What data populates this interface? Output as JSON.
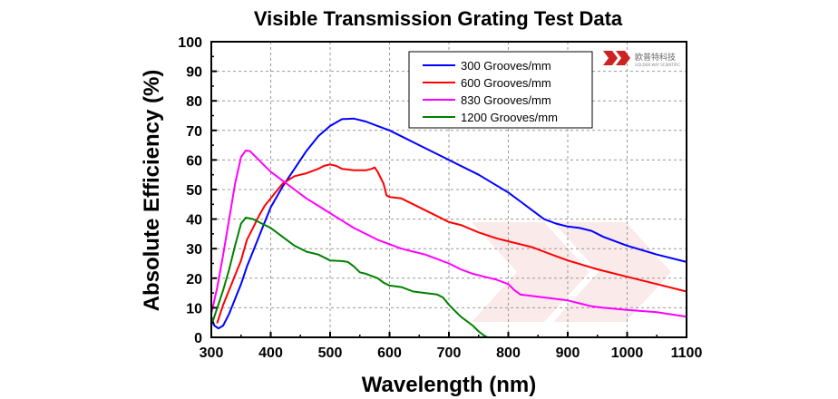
{
  "chart_data": {
    "type": "line",
    "title": "Visible Transmission Grating Test Data",
    "xlabel": "Wavelength (nm)",
    "ylabel": "Absolute Efficiency (%)",
    "xlim": [
      300,
      1100
    ],
    "ylim": [
      0,
      100
    ],
    "x_ticks": [
      300,
      400,
      500,
      600,
      700,
      800,
      900,
      1000,
      1100
    ],
    "y_ticks": [
      0,
      10,
      20,
      30,
      40,
      50,
      60,
      70,
      80,
      90,
      100
    ],
    "grid": true,
    "legend_position": "top-right",
    "series": [
      {
        "name": "300 Grooves/mm",
        "color": "#0000ff",
        "points": [
          [
            300,
            7
          ],
          [
            305,
            4
          ],
          [
            312,
            3
          ],
          [
            320,
            4
          ],
          [
            330,
            8
          ],
          [
            340,
            13
          ],
          [
            350,
            18
          ],
          [
            360,
            24
          ],
          [
            370,
            29
          ],
          [
            380,
            34
          ],
          [
            390,
            39
          ],
          [
            400,
            44
          ],
          [
            420,
            51
          ],
          [
            440,
            57
          ],
          [
            460,
            63
          ],
          [
            480,
            68
          ],
          [
            500,
            71.5
          ],
          [
            520,
            73.8
          ],
          [
            540,
            74
          ],
          [
            560,
            73
          ],
          [
            580,
            71.5
          ],
          [
            600,
            70
          ],
          [
            620,
            68
          ],
          [
            650,
            65
          ],
          [
            700,
            60
          ],
          [
            750,
            55
          ],
          [
            800,
            49
          ],
          [
            820,
            46
          ],
          [
            840,
            43
          ],
          [
            860,
            40
          ],
          [
            880,
            38.5
          ],
          [
            900,
            37.5
          ],
          [
            920,
            37
          ],
          [
            940,
            36
          ],
          [
            960,
            34
          ],
          [
            1000,
            31
          ],
          [
            1050,
            28
          ],
          [
            1100,
            25.5
          ]
        ]
      },
      {
        "name": "600 Grooves/mm",
        "color": "#ff0000",
        "points": [
          [
            310,
            5
          ],
          [
            320,
            11
          ],
          [
            330,
            16
          ],
          [
            340,
            21
          ],
          [
            350,
            26
          ],
          [
            360,
            33
          ],
          [
            370,
            37
          ],
          [
            380,
            41
          ],
          [
            390,
            44.5
          ],
          [
            400,
            47
          ],
          [
            420,
            52
          ],
          [
            440,
            54.5
          ],
          [
            460,
            55.5
          ],
          [
            480,
            57
          ],
          [
            490,
            58
          ],
          [
            500,
            58.5
          ],
          [
            510,
            58
          ],
          [
            520,
            57
          ],
          [
            540,
            56.5
          ],
          [
            560,
            56.5
          ],
          [
            570,
            57
          ],
          [
            575,
            57.5
          ],
          [
            580,
            56
          ],
          [
            590,
            52
          ],
          [
            595,
            48
          ],
          [
            600,
            47.5
          ],
          [
            620,
            47
          ],
          [
            640,
            45
          ],
          [
            660,
            43
          ],
          [
            680,
            41
          ],
          [
            700,
            39
          ],
          [
            720,
            38
          ],
          [
            750,
            35.5
          ],
          [
            780,
            33.5
          ],
          [
            800,
            32.5
          ],
          [
            820,
            31.5
          ],
          [
            840,
            30.5
          ],
          [
            860,
            29
          ],
          [
            880,
            27.5
          ],
          [
            900,
            26
          ],
          [
            950,
            23
          ],
          [
            1000,
            20.5
          ],
          [
            1050,
            18
          ],
          [
            1100,
            15.5
          ]
        ]
      },
      {
        "name": "830 Grooves/mm",
        "color": "#ff00ff",
        "points": [
          [
            300,
            8
          ],
          [
            310,
            17
          ],
          [
            320,
            28
          ],
          [
            330,
            40
          ],
          [
            340,
            52
          ],
          [
            350,
            61
          ],
          [
            358,
            63.2
          ],
          [
            365,
            63
          ],
          [
            375,
            61
          ],
          [
            390,
            58
          ],
          [
            400,
            56
          ],
          [
            420,
            53
          ],
          [
            440,
            50
          ],
          [
            460,
            47
          ],
          [
            480,
            44.5
          ],
          [
            500,
            42
          ],
          [
            520,
            39.5
          ],
          [
            540,
            37
          ],
          [
            560,
            35
          ],
          [
            580,
            33
          ],
          [
            600,
            31.5
          ],
          [
            620,
            30
          ],
          [
            640,
            29
          ],
          [
            660,
            28
          ],
          [
            680,
            26.5
          ],
          [
            700,
            25
          ],
          [
            720,
            23
          ],
          [
            740,
            21.5
          ],
          [
            760,
            20.5
          ],
          [
            780,
            19.5
          ],
          [
            800,
            18
          ],
          [
            810,
            16
          ],
          [
            820,
            14.5
          ],
          [
            840,
            14
          ],
          [
            860,
            13.5
          ],
          [
            880,
            13
          ],
          [
            900,
            12.5
          ],
          [
            920,
            11.5
          ],
          [
            940,
            10.5
          ],
          [
            960,
            10
          ],
          [
            1000,
            9.3
          ],
          [
            1050,
            8.5
          ],
          [
            1100,
            7
          ]
        ]
      },
      {
        "name": "1200 Grooves/mm",
        "color": "#008000",
        "points": [
          [
            300,
            4
          ],
          [
            310,
            10
          ],
          [
            320,
            16
          ],
          [
            330,
            23
          ],
          [
            340,
            31
          ],
          [
            350,
            38.5
          ],
          [
            358,
            40.5
          ],
          [
            370,
            40
          ],
          [
            380,
            39
          ],
          [
            400,
            37
          ],
          [
            420,
            34
          ],
          [
            440,
            31
          ],
          [
            460,
            29
          ],
          [
            480,
            28
          ],
          [
            500,
            26
          ],
          [
            520,
            25.8
          ],
          [
            530,
            25.5
          ],
          [
            540,
            24
          ],
          [
            550,
            22
          ],
          [
            560,
            21.5
          ],
          [
            580,
            20
          ],
          [
            590,
            18.5
          ],
          [
            600,
            17.5
          ],
          [
            620,
            17
          ],
          [
            640,
            15.5
          ],
          [
            660,
            15
          ],
          [
            680,
            14.5
          ],
          [
            690,
            13.5
          ],
          [
            700,
            11
          ],
          [
            710,
            9
          ],
          [
            720,
            7
          ],
          [
            740,
            4
          ],
          [
            750,
            2
          ],
          [
            760,
            0.5
          ],
          [
            765,
            0
          ]
        ]
      }
    ]
  },
  "logo": {
    "name": "欧普特科技",
    "subtitle": "GOLDEN WAY SCIENTIFIC"
  }
}
